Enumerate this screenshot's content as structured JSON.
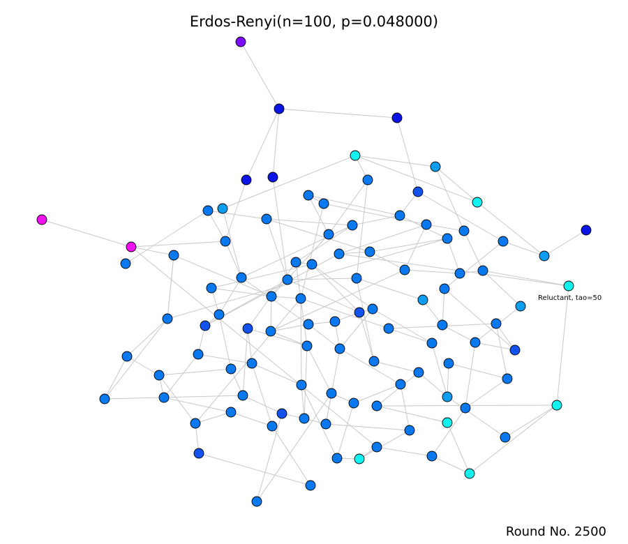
{
  "title": "Erdos-Renyi(n=100, p=0.048000)",
  "round_label": "Round No. 2500",
  "node_annotation": "Reluctant, tao=50",
  "colors": {
    "edge": "#c8c8c8",
    "node_border": "#000000",
    "magenta": "#ee11ee",
    "violet": "#7a0cf5",
    "blue": "#0a14e6",
    "royal": "#1452ee",
    "azure": "#0a78ee",
    "sky": "#0c9cf0",
    "cyan": "#11f2ee"
  }
}
